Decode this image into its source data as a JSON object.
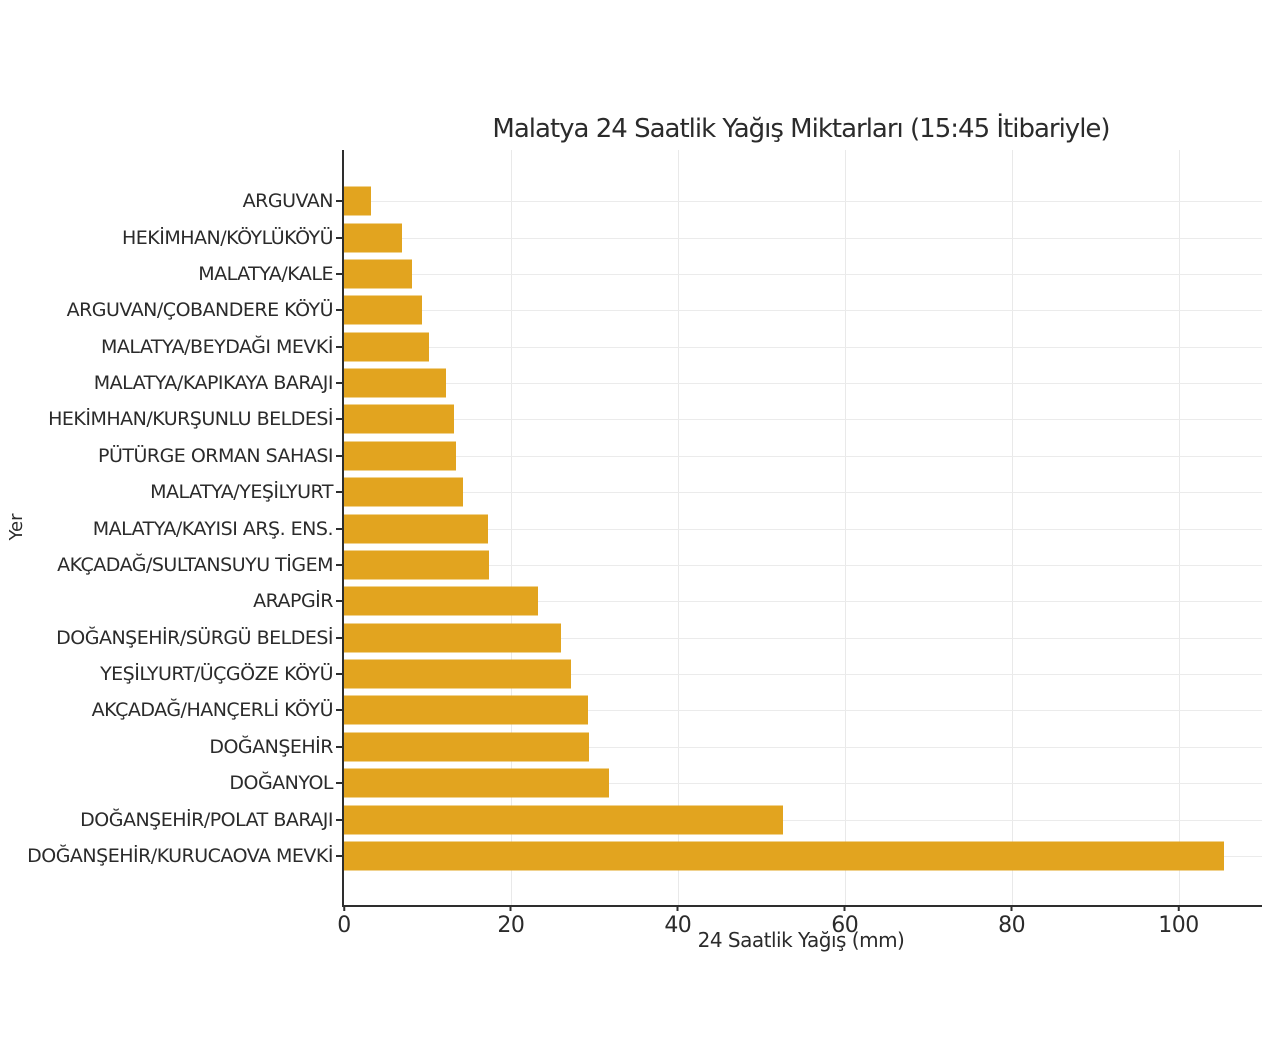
{
  "chart_data": {
    "type": "bar",
    "orientation": "horizontal",
    "title": "Malatya 24 Saatlik Yağış Miktarları (15:45 İtibariyle)",
    "xlabel": "24 Saatlik Yağış (mm)",
    "ylabel": "Yer",
    "xlim": [
      0,
      110
    ],
    "xticks": [
      0,
      20,
      40,
      60,
      80,
      100
    ],
    "grid": true,
    "legend": false,
    "bar_color": "#e2a41f",
    "categories": [
      "ARGUVAN",
      "HEKİMHAN/KÖYLÜKÖYÜ",
      "MALATYA/KALE",
      "ARGUVAN/ÇOBANDERE KÖYÜ",
      "MALATYA/BEYDAĞI MEVKİ",
      "MALATYA/KAPIKAYA BARAJI",
      "HEKİMHAN/KURŞUNLU BELDESİ",
      "PÜTÜRGE ORMAN SAHASI",
      "MALATYA/YEŞİLYURT",
      "MALATYA/KAYISI ARŞ. ENS.",
      "AKÇADAĞ/SULTANSUYU TİGEM",
      "ARAPGİR",
      "DOĞANŞEHİR/SÜRGÜ BELDESİ",
      "YEŞİLYURT/ÜÇGÖZE KÖYÜ",
      "AKÇADAĞ/HANÇERLİ KÖYÜ",
      "DOĞANŞEHİR",
      "DOĞANYOL",
      "DOĞANŞEHİR/POLAT BARAJI",
      "DOĞANŞEHİR/KURUCAOVA MEVKİ"
    ],
    "values": [
      3.2,
      7.0,
      8.2,
      9.4,
      10.2,
      12.2,
      13.2,
      13.4,
      14.2,
      17.2,
      17.4,
      23.2,
      26.0,
      27.2,
      29.2,
      29.4,
      31.8,
      52.6,
      105.4
    ]
  }
}
